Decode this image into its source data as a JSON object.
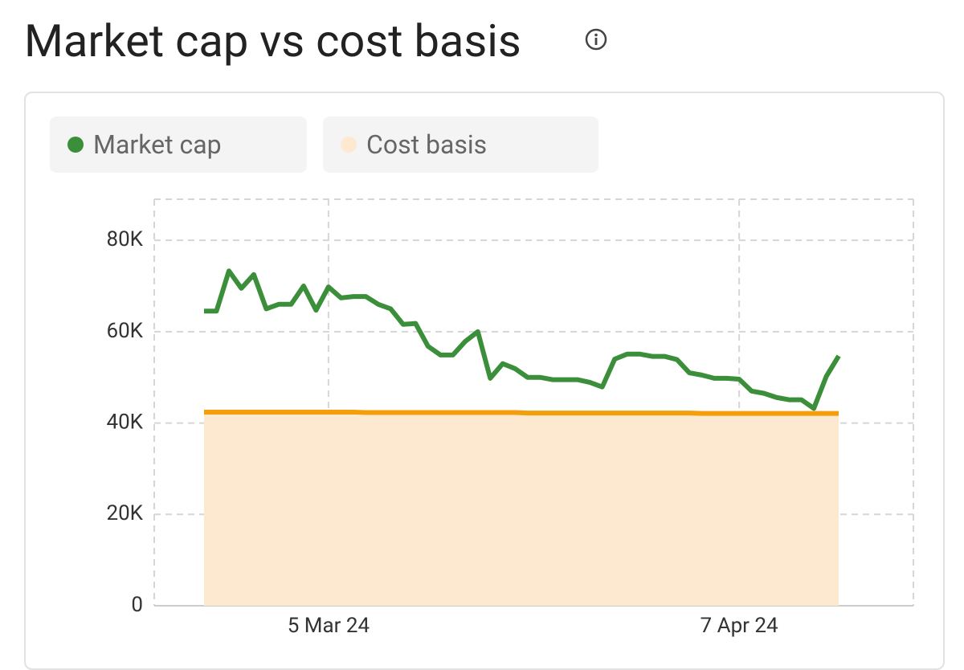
{
  "chart_data": {
    "type": "line",
    "title": "Market cap vs cost basis",
    "x": [
      "2024-02-24",
      "2024-02-25",
      "2024-02-26",
      "2024-02-27",
      "2024-02-28",
      "2024-02-29",
      "2024-03-01",
      "2024-03-02",
      "2024-03-03",
      "2024-03-04",
      "2024-03-05",
      "2024-03-06",
      "2024-03-07",
      "2024-03-08",
      "2024-03-09",
      "2024-03-10",
      "2024-03-11",
      "2024-03-12",
      "2024-03-13",
      "2024-03-14",
      "2024-03-15",
      "2024-03-16",
      "2024-03-17",
      "2024-03-18",
      "2024-03-19",
      "2024-03-20",
      "2024-03-21",
      "2024-03-22",
      "2024-03-23",
      "2024-03-24",
      "2024-03-25",
      "2024-03-26",
      "2024-03-27",
      "2024-03-28",
      "2024-03-29",
      "2024-03-30",
      "2024-03-31",
      "2024-04-01",
      "2024-04-02",
      "2024-04-03",
      "2024-04-04",
      "2024-04-05",
      "2024-04-06",
      "2024-04-07",
      "2024-04-08",
      "2024-04-09",
      "2024-04-10",
      "2024-04-11",
      "2024-04-12",
      "2024-04-13",
      "2024-04-14",
      "2024-04-15"
    ],
    "series": [
      {
        "name": "Market cap",
        "color": "#3b8f3a",
        "values": [
          64500,
          64500,
          73300,
          69500,
          72500,
          65000,
          66000,
          66000,
          70000,
          64700,
          69800,
          67400,
          67700,
          67700,
          66000,
          65000,
          61600,
          61800,
          56800,
          54900,
          54900,
          57900,
          60000,
          49800,
          53000,
          51900,
          50000,
          50000,
          49500,
          49500,
          49500,
          48900,
          47900,
          54000,
          55100,
          55100,
          54600,
          54600,
          53900,
          51000,
          50500,
          49800,
          49800,
          49600,
          47000,
          46500,
          45600,
          45100,
          45100,
          43200,
          50200,
          54700
        ]
      },
      {
        "name": "Cost basis",
        "color": "#f59e0b",
        "fill": "#fde9cf",
        "values": [
          42400,
          42400,
          42400,
          42400,
          42400,
          42400,
          42400,
          42400,
          42400,
          42400,
          42400,
          42400,
          42400,
          42300,
          42300,
          42300,
          42300,
          42300,
          42300,
          42300,
          42300,
          42300,
          42300,
          42300,
          42300,
          42300,
          42200,
          42200,
          42200,
          42200,
          42200,
          42200,
          42200,
          42200,
          42200,
          42200,
          42200,
          42200,
          42200,
          42200,
          42100,
          42100,
          42100,
          42100,
          42100,
          42100,
          42100,
          42100,
          42100,
          42100,
          42100,
          42100
        ]
      }
    ],
    "xlim": [
      "2024-02-20",
      "2024-04-21"
    ],
    "xticks": [
      {
        "value": "2024-03-05",
        "label": "5 Mar 24"
      },
      {
        "value": "2024-04-07",
        "label": "7 Apr 24"
      }
    ],
    "ylim": [
      0,
      89000
    ],
    "yticks": [
      0,
      {
        "value": 20000,
        "label": "20K"
      },
      {
        "value": 40000,
        "label": "40K"
      },
      {
        "value": 60000,
        "label": "60K"
      },
      {
        "value": 80000,
        "label": "80K"
      }
    ],
    "grid": true
  }
}
